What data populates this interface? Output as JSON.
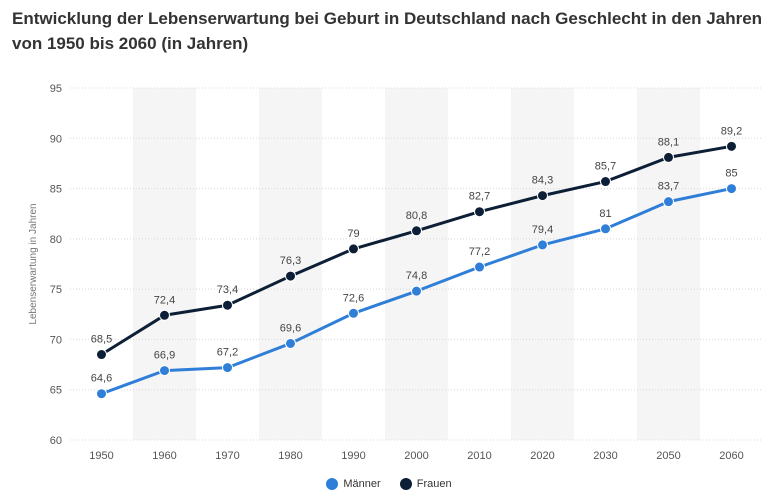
{
  "title": "Entwicklung der Lebenserwartung bei Geburt in Deutschland nach Geschlecht in den Jahren von 1950 bis 2060 (in Jahren)",
  "chart_data": {
    "type": "line",
    "title": "Entwicklung der Lebenserwartung bei Geburt in Deutschland nach Geschlecht in den Jahren von 1950 bis 2060 (in Jahren)",
    "xlabel": "",
    "ylabel": "Lebenserwartung in Jahren",
    "ylim": [
      60,
      95
    ],
    "yticks": [
      60,
      65,
      70,
      75,
      80,
      85,
      90,
      95
    ],
    "categories": [
      "1950",
      "1960",
      "1970",
      "1980",
      "1990",
      "2000",
      "2010",
      "2020",
      "2030",
      "2050",
      "2060"
    ],
    "series": [
      {
        "name": "Männer",
        "color": "#2f7ed8",
        "values": [
          64.6,
          66.9,
          67.2,
          69.6,
          72.6,
          74.8,
          77.2,
          79.4,
          81,
          83.7,
          85
        ],
        "labels": [
          "64,6",
          "66,9",
          "67,2",
          "69,6",
          "72,6",
          "74,8",
          "77,2",
          "79,4",
          "81",
          "83,7",
          "85"
        ]
      },
      {
        "name": "Frauen",
        "color": "#0c1f36",
        "values": [
          68.5,
          72.4,
          73.4,
          76.3,
          79,
          80.8,
          82.7,
          84.3,
          85.7,
          88.1,
          89.2
        ],
        "labels": [
          "68,5",
          "72,4",
          "73,4",
          "76,3",
          "79",
          "80,8",
          "82,7",
          "84,3",
          "85,7",
          "88,1",
          "89,2"
        ]
      }
    ],
    "legend_position": "bottom-center",
    "grid": true
  }
}
